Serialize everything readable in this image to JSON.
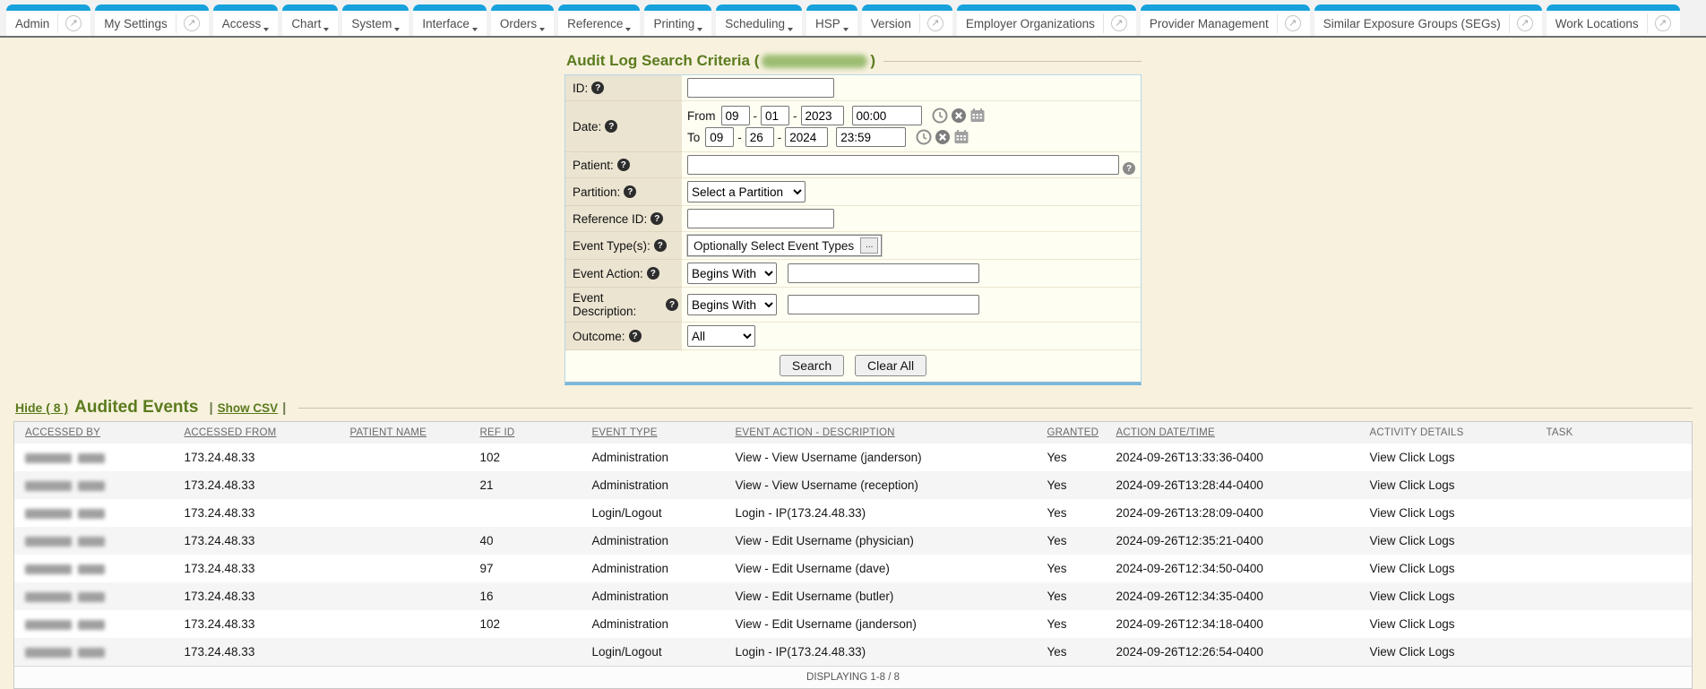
{
  "nav": {
    "tabs": [
      {
        "label": "Admin",
        "type": "panel"
      },
      {
        "label": "My Settings",
        "type": "panel"
      },
      {
        "label": "Access",
        "type": "menu"
      },
      {
        "label": "Chart",
        "type": "menu"
      },
      {
        "label": "System",
        "type": "menu"
      },
      {
        "label": "Interface",
        "type": "menu"
      },
      {
        "label": "Orders",
        "type": "menu"
      },
      {
        "label": "Reference",
        "type": "menu"
      },
      {
        "label": "Printing",
        "type": "menu"
      },
      {
        "label": "Scheduling",
        "type": "menu"
      },
      {
        "label": "HSP",
        "type": "menu"
      },
      {
        "label": "Version",
        "type": "panel"
      },
      {
        "label": "Employer Organizations",
        "type": "panel"
      },
      {
        "label": "Provider Management",
        "type": "panel"
      },
      {
        "label": "Similar Exposure Groups (SEGs)",
        "type": "panel"
      },
      {
        "label": "Work Locations",
        "type": "panel"
      }
    ]
  },
  "icons": {
    "help": "?",
    "new_window": "↗",
    "ellipsis": "..."
  },
  "colors": {
    "tab_accent": "#17a2dc",
    "title_green": "#5b7b1d",
    "form_label_bg": "#ebe4d1",
    "form_panel_bg": "#fffef2",
    "panel_bottom_border": "#7fb8d9",
    "page_bg": "#f7f1de"
  },
  "form": {
    "title_prefix": "Audit Log Search Criteria (",
    "title_suffix": ")",
    "user_redacted": true,
    "labels": {
      "id": "ID:",
      "date": "Date:",
      "patient": "Patient:",
      "partition": "Partition:",
      "reference_id": "Reference ID:",
      "event_types": "Event Type(s):",
      "event_action": "Event Action:",
      "event_description": "Event Description:",
      "outcome": "Outcome:"
    },
    "id_value": "",
    "date": {
      "from_label": "From",
      "to_label": "To",
      "from": {
        "month": "09",
        "day": "01",
        "year": "2023",
        "time": "00:00"
      },
      "to": {
        "month": "09",
        "day": "26",
        "year": "2024",
        "time": "23:59"
      }
    },
    "patient_value": "",
    "partition_selected": "Select a Partition",
    "reference_id_value": "",
    "event_types_text": "Optionally Select Event Types",
    "event_action_match": "Begins With",
    "event_action_value": "",
    "event_description_match": "Begins With",
    "event_description_value": "",
    "outcome_selected": "All",
    "search_label": "Search",
    "clear_label": "Clear All"
  },
  "results": {
    "hide_link": "Hide ( 8 )",
    "title": "Audited Events",
    "pipe": "|",
    "csv_link": "Show CSV",
    "accessed_by_redacted": true,
    "columns": [
      {
        "label": "ACCESSED BY",
        "sortable": true
      },
      {
        "label": "ACCESSED FROM",
        "sortable": true
      },
      {
        "label": "PATIENT NAME",
        "sortable": true
      },
      {
        "label": "REF ID",
        "sortable": true
      },
      {
        "label": "EVENT TYPE",
        "sortable": true
      },
      {
        "label": "EVENT ACTION - DESCRIPTION",
        "sortable": true
      },
      {
        "label": "GRANTED",
        "sortable": true
      },
      {
        "label": "ACTION DATE/TIME",
        "sortable": true
      },
      {
        "label": "ACTIVITY DETAILS",
        "sortable": false
      },
      {
        "label": "TASK",
        "sortable": false
      }
    ],
    "rows": [
      {
        "accessed_from": "173.24.48.33",
        "patient_name": "",
        "ref_id": "102",
        "event_type": "Administration",
        "event_action": "View - View Username (janderson)",
        "granted": "Yes",
        "action_datetime": "2024-09-26T13:33:36-0400",
        "activity_details": "View Click Logs",
        "task": ""
      },
      {
        "accessed_from": "173.24.48.33",
        "patient_name": "",
        "ref_id": "21",
        "event_type": "Administration",
        "event_action": "View - View Username (reception)",
        "granted": "Yes",
        "action_datetime": "2024-09-26T13:28:44-0400",
        "activity_details": "View Click Logs",
        "task": ""
      },
      {
        "accessed_from": "173.24.48.33",
        "patient_name": "",
        "ref_id": "",
        "event_type": "Login/Logout",
        "event_action": "Login - IP(173.24.48.33)",
        "granted": "Yes",
        "action_datetime": "2024-09-26T13:28:09-0400",
        "activity_details": "View Click Logs",
        "task": ""
      },
      {
        "accessed_from": "173.24.48.33",
        "patient_name": "",
        "ref_id": "40",
        "event_type": "Administration",
        "event_action": "View - Edit Username (physician)",
        "granted": "Yes",
        "action_datetime": "2024-09-26T12:35:21-0400",
        "activity_details": "View Click Logs",
        "task": ""
      },
      {
        "accessed_from": "173.24.48.33",
        "patient_name": "",
        "ref_id": "97",
        "event_type": "Administration",
        "event_action": "View - Edit Username (dave)",
        "granted": "Yes",
        "action_datetime": "2024-09-26T12:34:50-0400",
        "activity_details": "View Click Logs",
        "task": ""
      },
      {
        "accessed_from": "173.24.48.33",
        "patient_name": "",
        "ref_id": "16",
        "event_type": "Administration",
        "event_action": "View - Edit Username (butler)",
        "granted": "Yes",
        "action_datetime": "2024-09-26T12:34:35-0400",
        "activity_details": "View Click Logs",
        "task": ""
      },
      {
        "accessed_from": "173.24.48.33",
        "patient_name": "",
        "ref_id": "102",
        "event_type": "Administration",
        "event_action": "View - Edit Username (janderson)",
        "granted": "Yes",
        "action_datetime": "2024-09-26T12:34:18-0400",
        "activity_details": "View Click Logs",
        "task": ""
      },
      {
        "accessed_from": "173.24.48.33",
        "patient_name": "",
        "ref_id": "",
        "event_type": "Login/Logout",
        "event_action": "Login - IP(173.24.48.33)",
        "granted": "Yes",
        "action_datetime": "2024-09-26T12:26:54-0400",
        "activity_details": "View Click Logs",
        "task": ""
      }
    ],
    "footer": "DISPLAYING 1-8 / 8"
  }
}
